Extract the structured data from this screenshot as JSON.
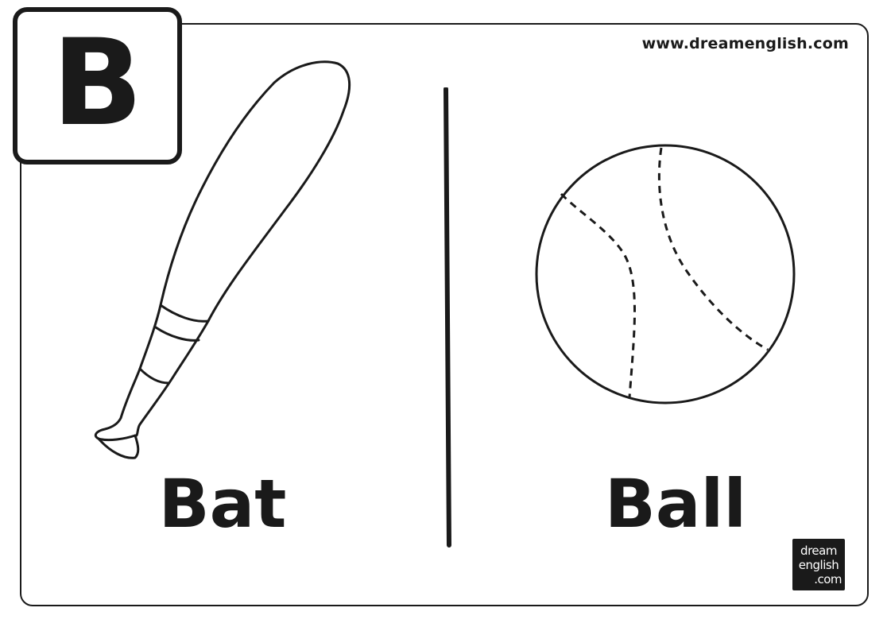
{
  "letter": "B",
  "website": "www.dreamenglish.com",
  "items": [
    {
      "word": "Bat",
      "icon": "baseball-bat-icon"
    },
    {
      "word": "Ball",
      "icon": "baseball-icon"
    }
  ],
  "logo": {
    "line1": "dream",
    "line2": "english",
    "line3": ".com"
  },
  "colors": {
    "ink": "#1a1a1a",
    "paper": "#ffffff"
  }
}
